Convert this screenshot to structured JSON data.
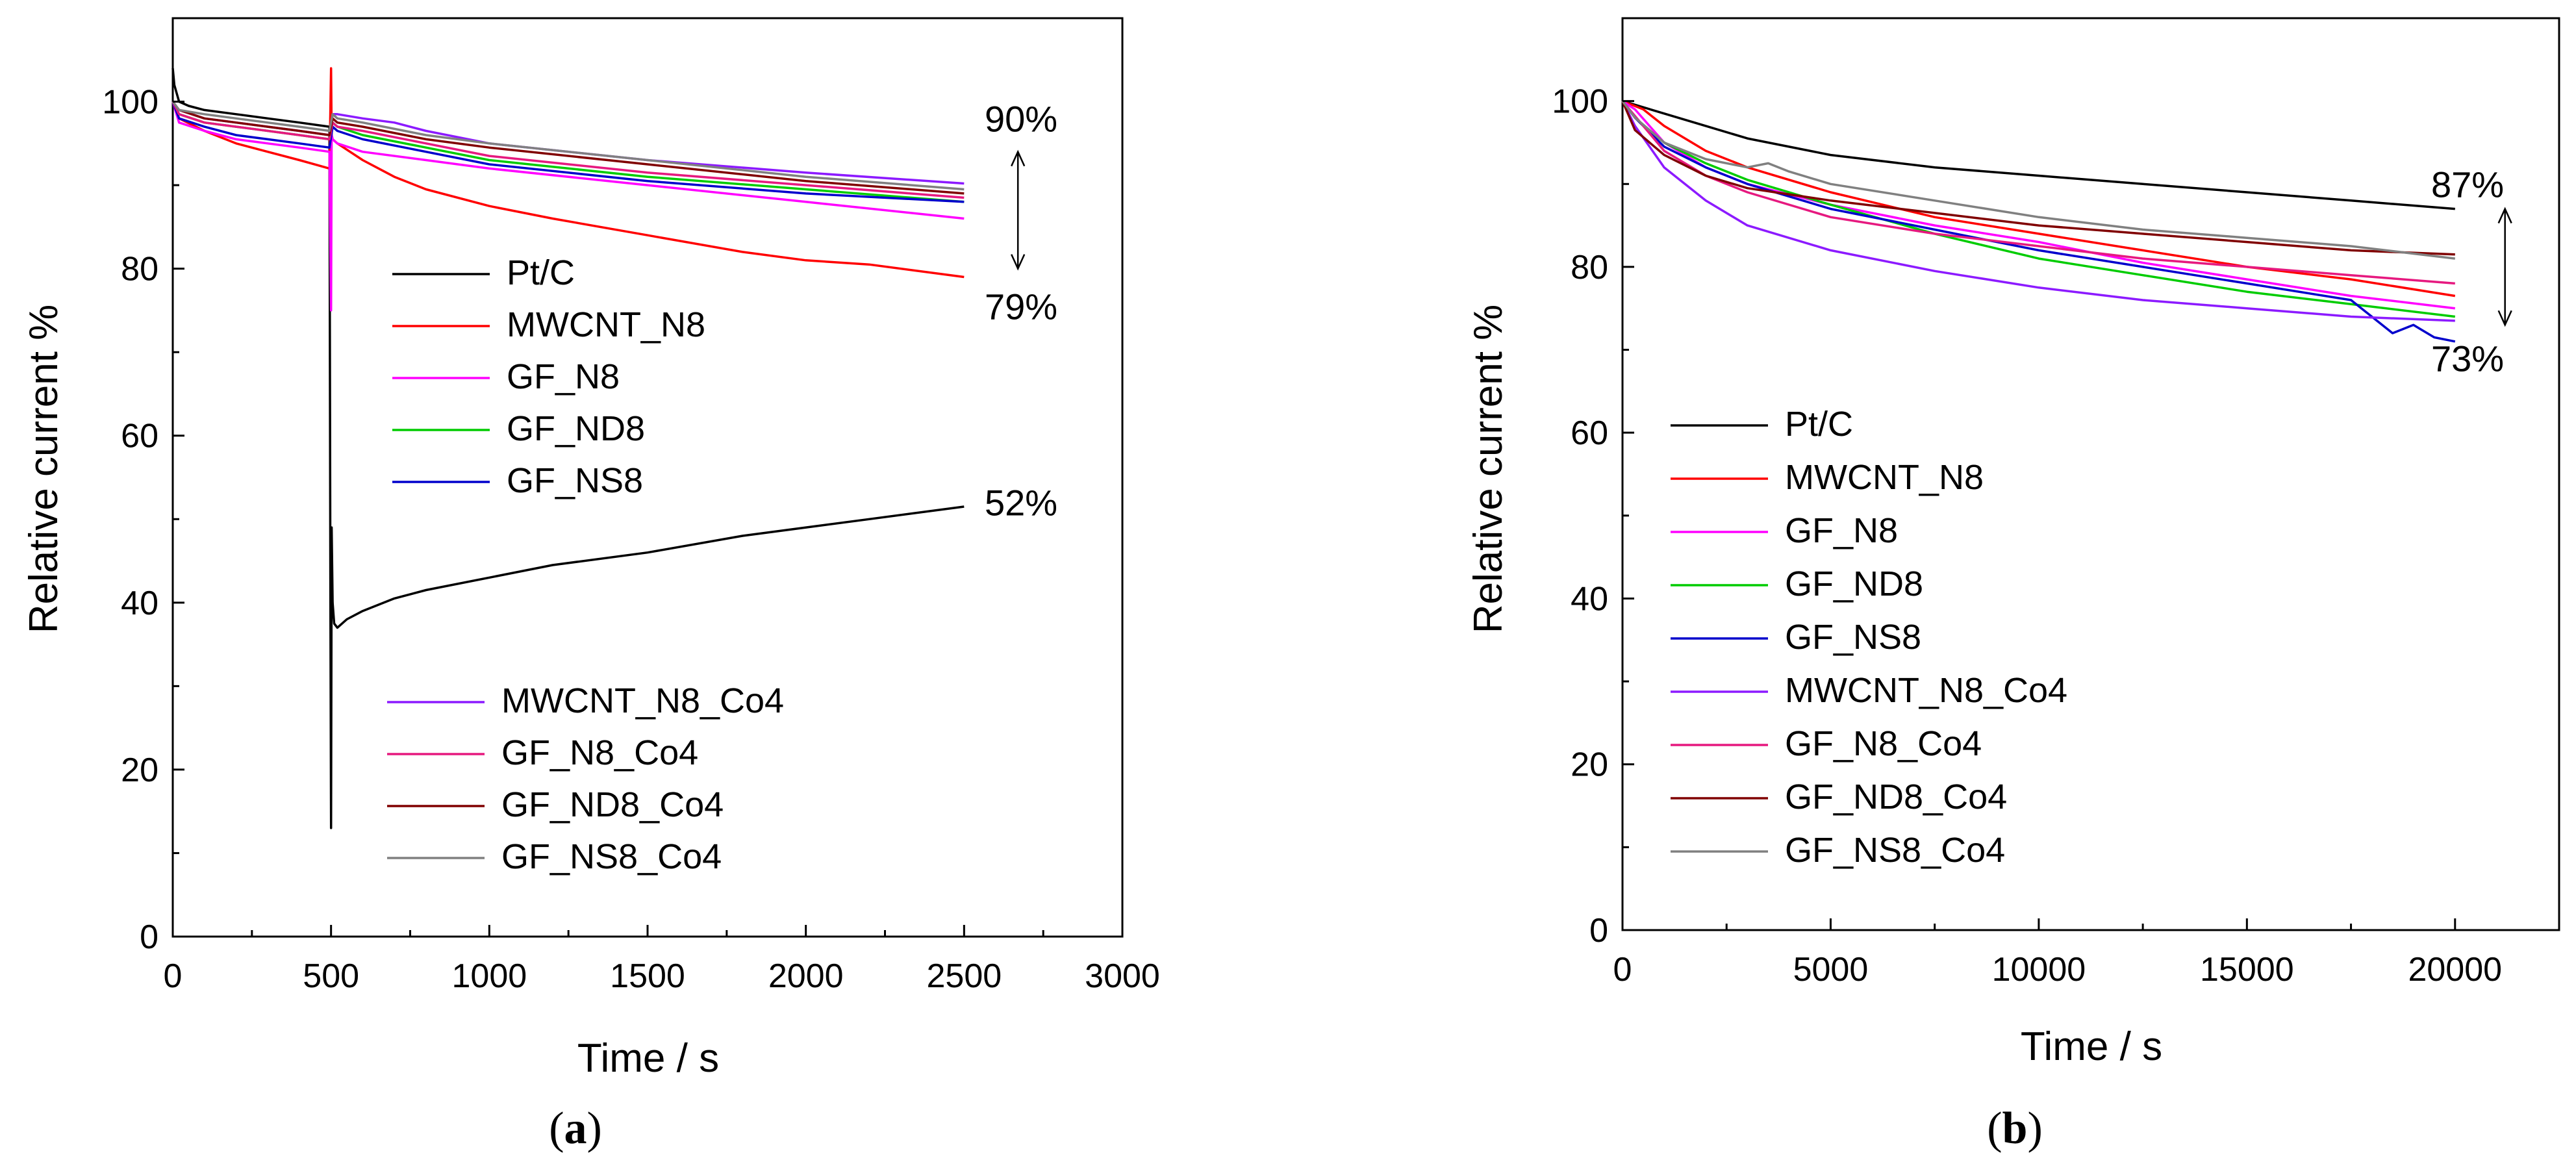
{
  "chart_data": [
    {
      "panel": "a",
      "panel_label": "a",
      "type": "line",
      "xlabel": "Time / s",
      "ylabel": "Relative current %",
      "xlim": [
        0,
        3000
      ],
      "ylim": [
        0,
        110
      ],
      "xticks": [
        0,
        500,
        1000,
        1500,
        2000,
        2500,
        3000
      ],
      "yticks": [
        0,
        20,
        40,
        60,
        80,
        100
      ],
      "legend_groups": [
        {
          "position": "middle",
          "entries": [
            "Pt/C",
            "MWCNT_N8",
            "GF_N8",
            "GF_ND8",
            "GF_NS8"
          ]
        },
        {
          "position": "bottom",
          "entries": [
            "MWCNT_N8_Co4",
            "GF_N8_Co4",
            "GF_ND8_Co4",
            "GF_NS8_Co4"
          ]
        }
      ],
      "annotations": [
        {
          "text": "90%",
          "x": 2680,
          "y": 98
        },
        {
          "text": "79%",
          "x": 2680,
          "y": 75.5
        },
        {
          "text": "52%",
          "x": 2680,
          "y": 52
        }
      ],
      "range_arrow": {
        "x": 2670,
        "y_from": 94,
        "y_to": 80
      },
      "series": [
        {
          "name": "Pt/C",
          "color": "#000000",
          "x": [
            0,
            5,
            20,
            50,
            100,
            200,
            300,
            400,
            495,
            498,
            500,
            502,
            505,
            510,
            520,
            550,
            600,
            700,
            800,
            1000,
            1200,
            1500,
            1800,
            2000,
            2200,
            2500
          ],
          "y": [
            104,
            102,
            100,
            99.5,
            99,
            98.5,
            98,
            97.5,
            97,
            40,
            13,
            49,
            40,
            37.5,
            37,
            38,
            39,
            40.5,
            41.5,
            43,
            44.5,
            46,
            48,
            49,
            50,
            51.5
          ]
        },
        {
          "name": "MWCNT_N8",
          "color": "#ff0000",
          "x": [
            0,
            20,
            100,
            200,
            300,
            400,
            495,
            500,
            502,
            505,
            520,
            600,
            700,
            800,
            1000,
            1200,
            1500,
            1800,
            2000,
            2200,
            2500
          ],
          "y": [
            100,
            98,
            96.5,
            95,
            94,
            93,
            92,
            104,
            96,
            95.5,
            95,
            93,
            91,
            89.5,
            87.5,
            86,
            84,
            82,
            81,
            80.5,
            79
          ]
        },
        {
          "name": "GF_N8",
          "color": "#ff00ff",
          "x": [
            0,
            20,
            100,
            200,
            300,
            400,
            495,
            500,
            502,
            505,
            520,
            600,
            800,
            1000,
            1500,
            2000,
            2500
          ],
          "y": [
            100,
            97.5,
            96.5,
            95.5,
            95,
            94.5,
            94,
            75,
            96,
            95.5,
            95,
            94,
            93,
            92,
            90,
            88,
            86
          ]
        },
        {
          "name": "GF_ND8",
          "color": "#00cc00",
          "x": [
            0,
            20,
            100,
            200,
            300,
            400,
            495,
            505,
            520,
            600,
            800,
            1000,
            1500,
            2000,
            2500
          ],
          "y": [
            100,
            98.5,
            97.5,
            97,
            96.5,
            96,
            95.5,
            97.5,
            97,
            96,
            94.5,
            93,
            91,
            89.5,
            88
          ]
        },
        {
          "name": "GF_NS8",
          "color": "#0000cc",
          "x": [
            0,
            20,
            100,
            200,
            300,
            400,
            495,
            505,
            520,
            600,
            800,
            1000,
            1500,
            2000,
            2500
          ],
          "y": [
            100,
            98,
            97,
            96,
            95.5,
            95,
            94.5,
            97,
            96.5,
            95.5,
            94,
            92.5,
            90.5,
            89,
            88
          ]
        },
        {
          "name": "MWCNT_N8_Co4",
          "color": "#8c1aff",
          "x": [
            0,
            20,
            100,
            200,
            300,
            400,
            495,
            505,
            520,
            600,
            700,
            800,
            1000,
            1500,
            2000,
            2500
          ],
          "y": [
            100,
            99,
            98,
            97.5,
            97,
            96.5,
            96,
            98.5,
            98.5,
            98,
            97.5,
            96.5,
            95,
            93,
            91.5,
            90.2
          ]
        },
        {
          "name": "GF_N8_Co4",
          "color": "#e6197f",
          "x": [
            0,
            20,
            100,
            200,
            300,
            400,
            495,
            505,
            520,
            600,
            800,
            1000,
            1500,
            2000,
            2500
          ],
          "y": [
            100,
            98.5,
            97.5,
            97,
            96.5,
            96,
            95.5,
            97.5,
            97,
            96.5,
            95,
            93.5,
            91.5,
            90,
            88.5
          ]
        },
        {
          "name": "GF_ND8_Co4",
          "color": "#800000",
          "x": [
            0,
            20,
            100,
            200,
            300,
            400,
            495,
            505,
            520,
            600,
            800,
            1000,
            1500,
            2000,
            2500
          ],
          "y": [
            100,
            99,
            98,
            97.5,
            97,
            96.5,
            96,
            98,
            97.5,
            97,
            95.5,
            94.5,
            92.5,
            90.5,
            89
          ]
        },
        {
          "name": "GF_NS8_Co4",
          "color": "#808080",
          "x": [
            0,
            20,
            100,
            200,
            300,
            400,
            495,
            505,
            520,
            600,
            800,
            1000,
            1500,
            2000,
            2500
          ],
          "y": [
            100,
            99,
            98.5,
            98,
            97.5,
            97,
            96.5,
            98.5,
            98,
            97.5,
            96,
            95,
            93,
            91,
            89.5
          ]
        }
      ]
    },
    {
      "panel": "b",
      "panel_label": "b",
      "type": "line",
      "xlabel": "Time / s",
      "ylabel": "Relative current %",
      "xlim": [
        0,
        22500
      ],
      "ylim": [
        0,
        110
      ],
      "xticks": [
        0,
        5000,
        10000,
        15000,
        20000
      ],
      "yticks": [
        0,
        20,
        40,
        60,
        80,
        100
      ],
      "legend_groups": [
        {
          "position": "middle",
          "entries": [
            "Pt/C",
            "MWCNT_N8",
            "GF_N8",
            "GF_ND8",
            "GF_NS8",
            "MWCNT_N8_Co4",
            "GF_N8_Co4",
            "GF_ND8_Co4",
            "GF_NS8_Co4"
          ]
        }
      ],
      "annotations": [
        {
          "text": "87%",
          "x": 20300,
          "y": 90
        },
        {
          "text": "73%",
          "x": 20300,
          "y": 69
        }
      ],
      "range_arrow": {
        "x": 21200,
        "y_from": 87,
        "y_to": 73
      },
      "series": [
        {
          "name": "Pt/C",
          "color": "#000000",
          "x": [
            0,
            1000,
            2000,
            3000,
            5000,
            7500,
            10000,
            12500,
            15000,
            17500,
            20000
          ],
          "y": [
            100,
            98.5,
            97,
            95.5,
            93.5,
            92,
            91,
            90,
            89,
            88,
            87
          ]
        },
        {
          "name": "MWCNT_N8",
          "color": "#ff0000",
          "x": [
            0,
            500,
            1000,
            2000,
            3000,
            5000,
            7500,
            10000,
            12500,
            15000,
            17500,
            20000
          ],
          "y": [
            100,
            99,
            97,
            94,
            92,
            89,
            86,
            84,
            82,
            80,
            78.5,
            76.5
          ]
        },
        {
          "name": "GF_N8",
          "color": "#ff00ff",
          "x": [
            0,
            300,
            1000,
            2000,
            3000,
            5000,
            7500,
            10000,
            12500,
            15000,
            17500,
            20000
          ],
          "y": [
            100,
            99,
            95,
            92,
            90,
            87.5,
            85,
            83,
            80.5,
            78.5,
            76.5,
            75
          ]
        },
        {
          "name": "GF_ND8",
          "color": "#00cc00",
          "x": [
            0,
            300,
            1000,
            2000,
            3000,
            5000,
            7500,
            10000,
            12500,
            15000,
            17500,
            20000
          ],
          "y": [
            100,
            98,
            95,
            92.5,
            90.5,
            87.5,
            84,
            81,
            79,
            77,
            75.5,
            74
          ]
        },
        {
          "name": "GF_NS8",
          "color": "#0000cc",
          "x": [
            0,
            300,
            1000,
            2000,
            3000,
            5000,
            7500,
            10000,
            12500,
            15000,
            17500,
            18000,
            18500,
            19000,
            19500,
            20000
          ],
          "y": [
            100,
            98,
            94.5,
            92,
            90,
            87,
            84.5,
            82,
            80,
            78,
            76,
            74,
            72,
            73,
            71.5,
            71
          ]
        },
        {
          "name": "MWCNT_N8_Co4",
          "color": "#8c1aff",
          "x": [
            0,
            300,
            1000,
            2000,
            3000,
            5000,
            7500,
            10000,
            12500,
            15000,
            17500,
            20000
          ],
          "y": [
            100,
            97,
            92,
            88,
            85,
            82,
            79.5,
            77.5,
            76,
            75,
            74,
            73.5
          ]
        },
        {
          "name": "GF_N8_Co4",
          "color": "#e6197f",
          "x": [
            0,
            500,
            1000,
            2000,
            3000,
            5000,
            7500,
            10000,
            12500,
            15000,
            17500,
            20000
          ],
          "y": [
            100,
            97,
            94,
            91,
            89,
            86,
            84,
            82.5,
            81,
            80,
            79,
            78
          ]
        },
        {
          "name": "GF_ND8_Co4",
          "color": "#800000",
          "x": [
            0,
            300,
            1000,
            2000,
            3000,
            5000,
            7500,
            10000,
            12500,
            15000,
            17500,
            20000
          ],
          "y": [
            100,
            96.5,
            93.5,
            91,
            89.5,
            88,
            86.5,
            85,
            84,
            83,
            82,
            81.5
          ]
        },
        {
          "name": "GF_NS8_Co4",
          "color": "#808080",
          "x": [
            0,
            300,
            1000,
            2000,
            3000,
            3500,
            4000,
            5000,
            7500,
            10000,
            12500,
            15000,
            17500,
            20000
          ],
          "y": [
            100,
            98,
            95,
            93,
            92,
            92.5,
            91.5,
            90,
            88,
            86,
            84.5,
            83.5,
            82.5,
            81
          ]
        }
      ]
    }
  ]
}
